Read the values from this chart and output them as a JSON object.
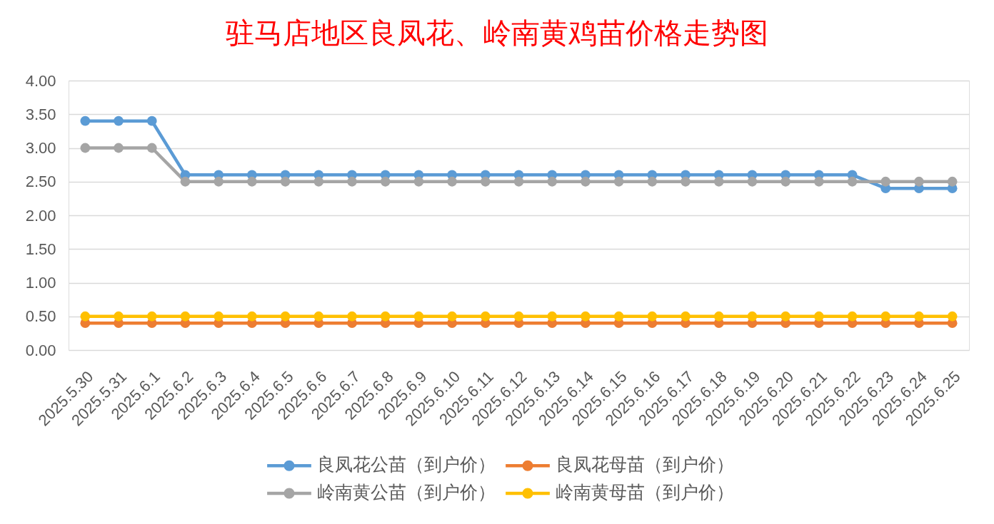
{
  "chart_data": {
    "type": "line",
    "title": "驻马店地区良凤花、岭南黄鸡苗价格走势图",
    "categories": [
      "2025.5.30",
      "2025.5.31",
      "2025.6.1",
      "2025.6.2",
      "2025.6.3",
      "2025.6.4",
      "2025.6.5",
      "2025.6.6",
      "2025.6.7",
      "2025.6.8",
      "2025.6.9",
      "2025.6.10",
      "2025.6.11",
      "2025.6.12",
      "2025.6.13",
      "2025.6.14",
      "2025.6.15",
      "2025.6.16",
      "2025.6.17",
      "2025.6.18",
      "2025.6.19",
      "2025.6.20",
      "2025.6.21",
      "2025.6.22",
      "2025.6.23",
      "2025.6.24",
      "2025.6.25"
    ],
    "series": [
      {
        "name": "良凤花公苗（到户价）",
        "color": "#5b9bd5",
        "values": [
          3.4,
          3.4,
          3.4,
          2.6,
          2.6,
          2.6,
          2.6,
          2.6,
          2.6,
          2.6,
          2.6,
          2.6,
          2.6,
          2.6,
          2.6,
          2.6,
          2.6,
          2.6,
          2.6,
          2.6,
          2.6,
          2.6,
          2.6,
          2.6,
          2.4,
          2.4,
          2.4
        ]
      },
      {
        "name": "良凤花母苗（到户价）",
        "color": "#ed7d31",
        "values": [
          0.4,
          0.4,
          0.4,
          0.4,
          0.4,
          0.4,
          0.4,
          0.4,
          0.4,
          0.4,
          0.4,
          0.4,
          0.4,
          0.4,
          0.4,
          0.4,
          0.4,
          0.4,
          0.4,
          0.4,
          0.4,
          0.4,
          0.4,
          0.4,
          0.4,
          0.4,
          0.4
        ]
      },
      {
        "name": "岭南黄公苗（到户价）",
        "color": "#a5a5a5",
        "values": [
          3.0,
          3.0,
          3.0,
          2.5,
          2.5,
          2.5,
          2.5,
          2.5,
          2.5,
          2.5,
          2.5,
          2.5,
          2.5,
          2.5,
          2.5,
          2.5,
          2.5,
          2.5,
          2.5,
          2.5,
          2.5,
          2.5,
          2.5,
          2.5,
          2.5,
          2.5,
          2.5
        ]
      },
      {
        "name": "岭南黄母苗（到户价）",
        "color": "#ffc000",
        "values": [
          0.5,
          0.5,
          0.5,
          0.5,
          0.5,
          0.5,
          0.5,
          0.5,
          0.5,
          0.5,
          0.5,
          0.5,
          0.5,
          0.5,
          0.5,
          0.5,
          0.5,
          0.5,
          0.5,
          0.5,
          0.5,
          0.5,
          0.5,
          0.5,
          0.5,
          0.5,
          0.5
        ]
      }
    ],
    "ylim": [
      0,
      4
    ],
    "yticks": [
      {
        "value": 0,
        "label": "0.00"
      },
      {
        "value": 0.5,
        "label": "0.50"
      },
      {
        "value": 1,
        "label": "1.00"
      },
      {
        "value": 1.5,
        "label": "1.50"
      },
      {
        "value": 2,
        "label": "2.00"
      },
      {
        "value": 2.5,
        "label": "2.50"
      },
      {
        "value": 3,
        "label": "3.00"
      },
      {
        "value": 3.5,
        "label": "3.50"
      },
      {
        "value": 4,
        "label": "4.00"
      }
    ],
    "grid": "y",
    "legend": "bottom",
    "marker": "circle",
    "line_style": "solid"
  }
}
